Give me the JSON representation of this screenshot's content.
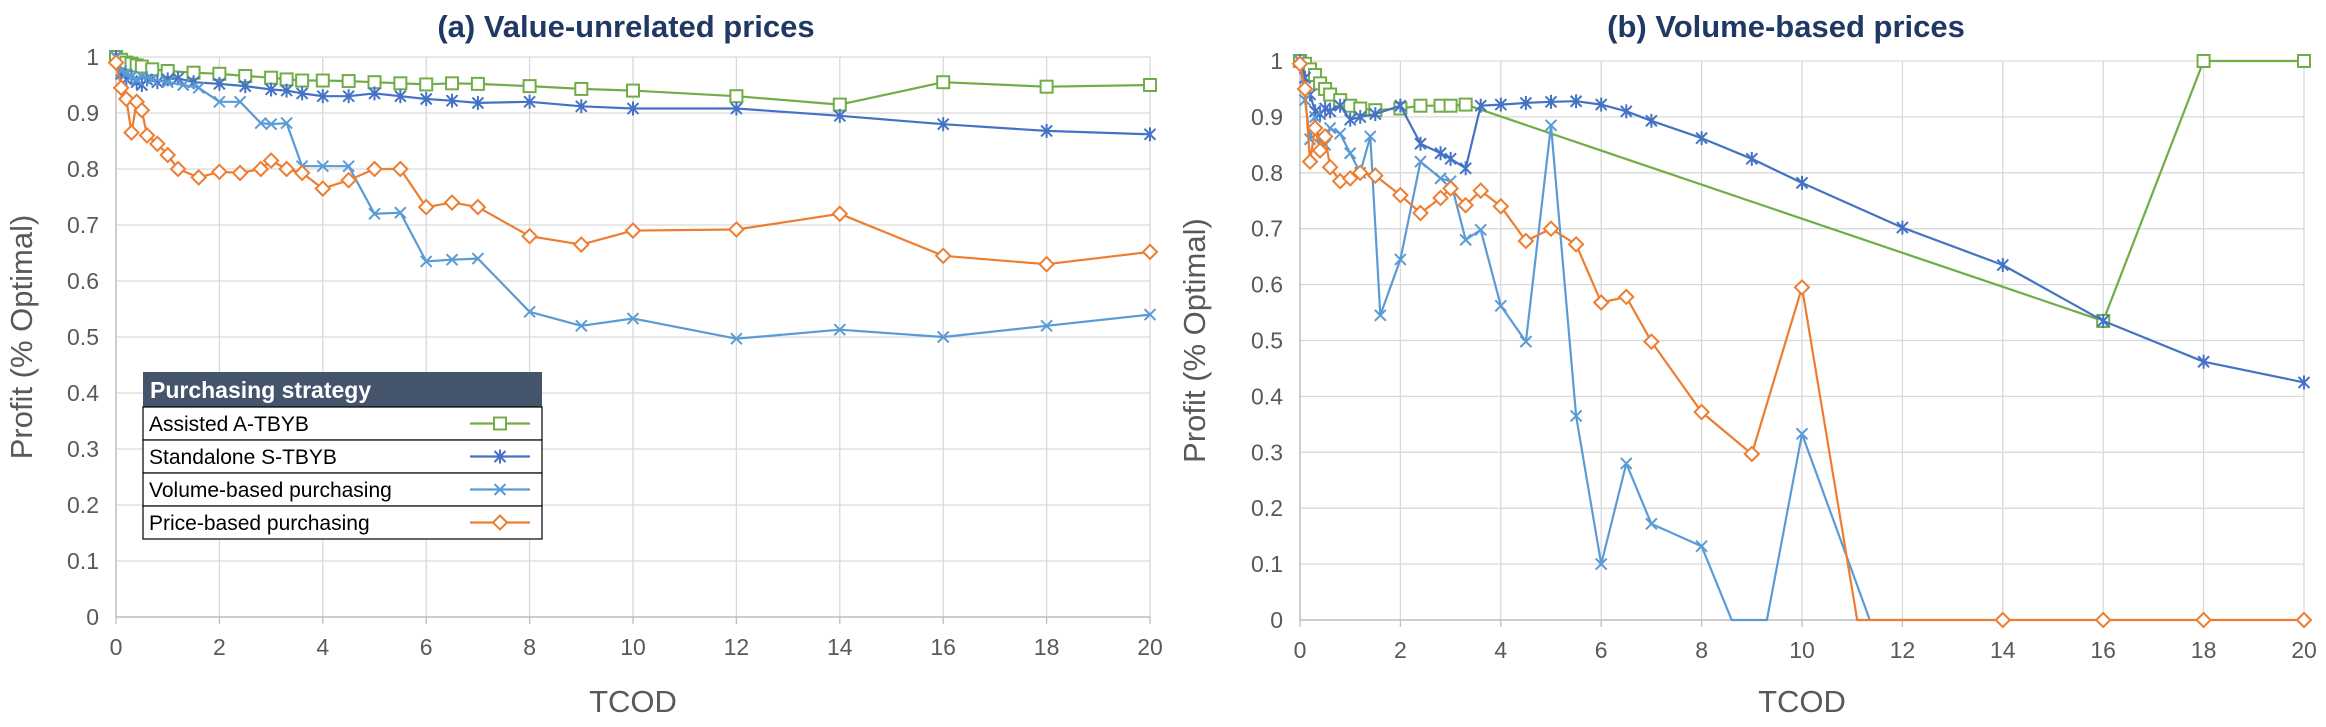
{
  "chart_data": [
    {
      "type": "line",
      "title": "(a) Value-unrelated prices",
      "xlabel": "TCOD",
      "ylabel": "Profit (% Optimal)",
      "xlim": [
        0,
        20
      ],
      "ylim": [
        0,
        1
      ],
      "xticks": [
        0,
        2,
        4,
        6,
        8,
        10,
        12,
        14,
        16,
        18,
        20
      ],
      "yticks": [
        0,
        0.1,
        0.2,
        0.3,
        0.4,
        0.5,
        0.6,
        0.7,
        0.8,
        0.9,
        1
      ],
      "grid": true,
      "legend": {
        "title": "Purchasing strategy",
        "placement": "bottom-left",
        "entries": [
          "Assisted A-TBYB",
          "Standalone S-TBYB",
          "Volume-based purchasing",
          "Price-based purchasing"
        ]
      },
      "series": [
        {
          "name": "Assisted A-TBYB",
          "color": "#70ad47",
          "marker": "square",
          "x": [
            0,
            0.1,
            0.2,
            0.3,
            0.4,
            0.5,
            0.7,
            1,
            1.5,
            2,
            2.5,
            3,
            3.3,
            3.6,
            4,
            4.5,
            5,
            5.5,
            6,
            6.5,
            7,
            8,
            9,
            10,
            12,
            14,
            16,
            18,
            20
          ],
          "y": [
            1,
            0.995,
            0.99,
            0.988,
            0.985,
            0.983,
            0.978,
            0.975,
            0.972,
            0.97,
            0.966,
            0.963,
            0.96,
            0.958,
            0.958,
            0.957,
            0.955,
            0.953,
            0.951,
            0.953,
            0.952,
            0.948,
            0.943,
            0.94,
            0.93,
            0.915,
            0.955,
            0.947,
            0.95
          ]
        },
        {
          "name": "Standalone S-TBYB",
          "color": "#4472c4",
          "marker": "asterisk",
          "x": [
            0,
            0.1,
            0.2,
            0.3,
            0.4,
            0.5,
            0.6,
            0.8,
            1,
            1.2,
            1.5,
            2,
            2.5,
            3,
            3.3,
            3.6,
            4,
            4.5,
            5,
            5.5,
            6,
            6.5,
            7,
            8,
            9,
            10,
            12,
            14,
            16,
            18,
            20
          ],
          "y": [
            1,
            0.97,
            0.96,
            0.965,
            0.955,
            0.95,
            0.96,
            0.955,
            0.96,
            0.962,
            0.955,
            0.952,
            0.948,
            0.942,
            0.94,
            0.935,
            0.93,
            0.93,
            0.935,
            0.93,
            0.925,
            0.922,
            0.918,
            0.92,
            0.912,
            0.908,
            0.908,
            0.895,
            0.88,
            0.868,
            0.862
          ]
        },
        {
          "name": "Volume-based purchasing",
          "color": "#5b9bd5",
          "marker": "x",
          "x": [
            0,
            0.1,
            0.2,
            0.3,
            0.4,
            0.5,
            0.7,
            1,
            1.3,
            1.6,
            2,
            2.4,
            2.8,
            3,
            3.3,
            3.6,
            4,
            4.5,
            5,
            5.5,
            6,
            6.5,
            7,
            8,
            9,
            10,
            12,
            14,
            16,
            18,
            20
          ],
          "y": [
            1,
            0.975,
            0.97,
            0.965,
            0.96,
            0.965,
            0.96,
            0.955,
            0.95,
            0.945,
            0.92,
            0.92,
            0.882,
            0.88,
            0.882,
            0.805,
            0.805,
            0.805,
            0.72,
            0.722,
            0.635,
            0.638,
            0.64,
            0.545,
            0.52,
            0.533,
            0.497,
            0.513,
            0.5,
            0.52,
            0.54
          ]
        },
        {
          "name": "Price-based purchasing",
          "color": "#ed7d31",
          "marker": "diamond",
          "x": [
            0,
            0.1,
            0.2,
            0.3,
            0.4,
            0.5,
            0.6,
            0.8,
            1,
            1.2,
            1.6,
            2,
            2.4,
            2.8,
            3,
            3.3,
            3.6,
            4,
            4.5,
            5,
            5.5,
            6,
            6.5,
            7,
            8,
            9,
            10,
            12,
            14,
            16,
            18,
            20
          ],
          "y": [
            0.99,
            0.945,
            0.925,
            0.865,
            0.92,
            0.905,
            0.86,
            0.845,
            0.825,
            0.8,
            0.785,
            0.795,
            0.793,
            0.8,
            0.815,
            0.8,
            0.793,
            0.765,
            0.78,
            0.8,
            0.8,
            0.732,
            0.74,
            0.732,
            0.68,
            0.665,
            0.69,
            0.692,
            0.72,
            0.645,
            0.63,
            0.652
          ]
        }
      ]
    },
    {
      "type": "line",
      "title": "(b) Volume-based prices",
      "xlabel": "TCOD",
      "ylabel": "Profit (% Optimal)",
      "xlim": [
        0,
        20
      ],
      "ylim": [
        0,
        1
      ],
      "xticks": [
        0,
        2,
        4,
        6,
        8,
        10,
        12,
        14,
        16,
        18,
        20
      ],
      "yticks": [
        0,
        0.1,
        0.2,
        0.3,
        0.4,
        0.5,
        0.6,
        0.7,
        0.8,
        0.9,
        1
      ],
      "grid": true,
      "series": [
        {
          "name": "Assisted A-TBYB",
          "color": "#70ad47",
          "marker": "square",
          "x": [
            0,
            0.1,
            0.2,
            0.3,
            0.4,
            0.5,
            0.6,
            0.8,
            1,
            1.2,
            1.5,
            2,
            2.4,
            2.8,
            3,
            3.3,
            16,
            18,
            20
          ],
          "y": [
            1,
            0.995,
            0.985,
            0.975,
            0.96,
            0.95,
            0.94,
            0.93,
            0.92,
            0.915,
            0.912,
            0.915,
            0.92,
            0.92,
            0.92,
            0.922,
            0.535,
            1,
            1
          ]
        },
        {
          "name": "Standalone S-TBYB",
          "color": "#4472c4",
          "marker": "asterisk",
          "x": [
            0,
            0.1,
            0.2,
            0.3,
            0.4,
            0.5,
            0.6,
            0.8,
            1,
            1.2,
            1.5,
            2,
            2.4,
            2.8,
            3,
            3.3,
            3.6,
            4,
            4.5,
            5,
            5.5,
            6,
            6.5,
            7,
            8,
            9,
            10,
            12,
            14,
            16,
            18,
            20
          ],
          "y": [
            1,
            0.97,
            0.94,
            0.91,
            0.905,
            0.915,
            0.91,
            0.92,
            0.895,
            0.9,
            0.905,
            0.92,
            0.852,
            0.835,
            0.825,
            0.808,
            0.92,
            0.922,
            0.925,
            0.927,
            0.928,
            0.922,
            0.91,
            0.893,
            0.862,
            0.825,
            0.782,
            0.702,
            0.635,
            0.535,
            0.462,
            0.425
          ]
        },
        {
          "name": "Volume-based purchasing",
          "color": "#5b9bd5",
          "marker": "x",
          "x": [
            0,
            0.1,
            0.2,
            0.3,
            0.4,
            0.5,
            0.6,
            0.8,
            1,
            1.2,
            1.4,
            1.6,
            2,
            2.4,
            2.8,
            3,
            3.3,
            3.6,
            4,
            4.5,
            5,
            5.5,
            6,
            6.5,
            7,
            8,
            8.6,
            9.3,
            10,
            11.35
          ],
          "y": [
            1,
            0.93,
            0.86,
            0.9,
            0.85,
            0.85,
            0.88,
            0.87,
            0.835,
            0.8,
            0.865,
            0.545,
            0.645,
            0.82,
            0.79,
            0.785,
            0.68,
            0.698,
            0.562,
            0.498,
            0.885,
            0.365,
            0.1,
            0.28,
            0.172,
            0.132,
            0,
            0,
            0.333,
            0
          ]
        },
        {
          "name": "Price-based purchasing",
          "color": "#ed7d31",
          "marker": "diamond",
          "x": [
            0,
            0.1,
            0.2,
            0.3,
            0.4,
            0.5,
            0.6,
            0.8,
            1,
            1.2,
            1.5,
            2,
            2.4,
            2.8,
            3,
            3.3,
            3.6,
            4,
            4.5,
            5,
            5.5,
            6,
            6.5,
            7,
            8,
            9,
            10,
            11.1,
            14,
            16,
            18,
            20
          ],
          "y": [
            0.995,
            0.95,
            0.82,
            0.88,
            0.84,
            0.865,
            0.81,
            0.785,
            0.79,
            0.8,
            0.795,
            0.76,
            0.728,
            0.755,
            0.772,
            0.742,
            0.768,
            0.74,
            0.678,
            0.7,
            0.672,
            0.568,
            0.578,
            0.498,
            0.372,
            0.297,
            0.595,
            0,
            0,
            0,
            0,
            0
          ]
        }
      ]
    }
  ]
}
